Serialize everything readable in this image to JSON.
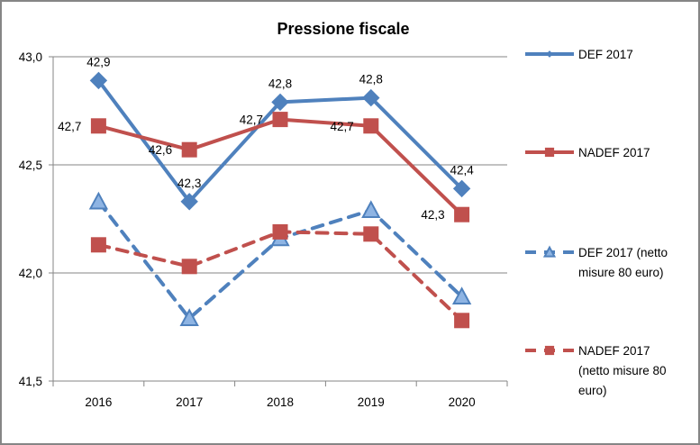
{
  "chart_data": {
    "type": "line",
    "title": "Pressione fiscale",
    "xlabel": "",
    "ylabel": "",
    "categories": [
      "2016",
      "2017",
      "2018",
      "2019",
      "2020"
    ],
    "ylim": [
      41.5,
      43.0
    ],
    "yticks": [
      41.5,
      42.0,
      42.5,
      43.0
    ],
    "ytick_labels": [
      "41,5",
      "42,0",
      "42,5",
      "43,0"
    ],
    "grid": true,
    "legend_position": "right",
    "series": [
      {
        "name": "DEF 2017",
        "legend_lines": [
          "DEF 2017"
        ],
        "color": "#4F81BD",
        "marker": "diamond",
        "dashed": false,
        "values": [
          42.89,
          42.33,
          42.79,
          42.81,
          42.39
        ],
        "labels": [
          "42,9",
          "42,3",
          "42,8",
          "42,8",
          "42,4"
        ],
        "label_position": [
          "above",
          "above",
          "above",
          "above",
          "above"
        ]
      },
      {
        "name": "NADEF 2017",
        "legend_lines": [
          "NADEF 2017"
        ],
        "color": "#C0504D",
        "marker": "square",
        "dashed": false,
        "values": [
          42.68,
          42.57,
          42.71,
          42.68,
          42.27
        ],
        "labels": [
          "42,7",
          "42,6",
          "42,7",
          "42,7",
          "42,3"
        ],
        "label_position": [
          "left",
          "left",
          "left",
          "left",
          "left"
        ]
      },
      {
        "name": "DEF 2017 (netto misure 80 euro)",
        "legend_lines": [
          "DEF 2017 (netto",
          "misure 80 euro)"
        ],
        "color": "#4F81BD",
        "fill": "#8EB4E3",
        "marker": "triangle",
        "dashed": true,
        "values": [
          42.33,
          41.79,
          42.16,
          42.29,
          41.89
        ],
        "labels": []
      },
      {
        "name": "NADEF 2017 (netto misure 80 euro)",
        "legend_lines": [
          "NADEF 2017",
          "(netto misure 80",
          "euro)"
        ],
        "color": "#C0504D",
        "marker": "square",
        "dashed": true,
        "values": [
          42.13,
          42.03,
          42.19,
          42.18,
          41.78
        ],
        "labels": []
      }
    ]
  }
}
